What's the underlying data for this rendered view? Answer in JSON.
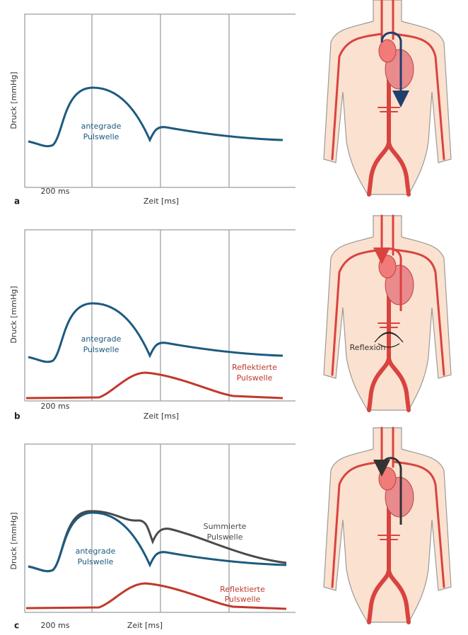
{
  "panels": [
    {
      "letter": "a",
      "y_axis_label": "Druck [mmHg]",
      "x_tick_label": "200 ms",
      "x_axis_label": "Zeit [ms]",
      "curve_labels": [
        {
          "lines": [
            "antegrade",
            "Pulswelle"
          ]
        }
      ]
    },
    {
      "letter": "b",
      "y_axis_label": "Druck [mmHg]",
      "x_tick_label": "200 ms",
      "x_axis_label": "Zeit [ms]",
      "curve_labels": [
        {
          "lines": [
            "antegrade",
            "Pulswelle"
          ]
        },
        {
          "lines": [
            "Reflektierte",
            "Pulswelle"
          ]
        }
      ],
      "annotation": "Reflexion"
    },
    {
      "letter": "c",
      "y_axis_label": "Druck [mmHg]",
      "x_tick_label": "200 ms",
      "x_axis_label": "Zeit [ms]",
      "curve_labels": [
        {
          "lines": [
            "antegrade",
            "Pulswelle"
          ]
        },
        {
          "lines": [
            "Summierte",
            "Pulswelle"
          ]
        },
        {
          "lines": [
            "Reflektierte",
            "Pulswelle"
          ]
        }
      ]
    }
  ]
}
